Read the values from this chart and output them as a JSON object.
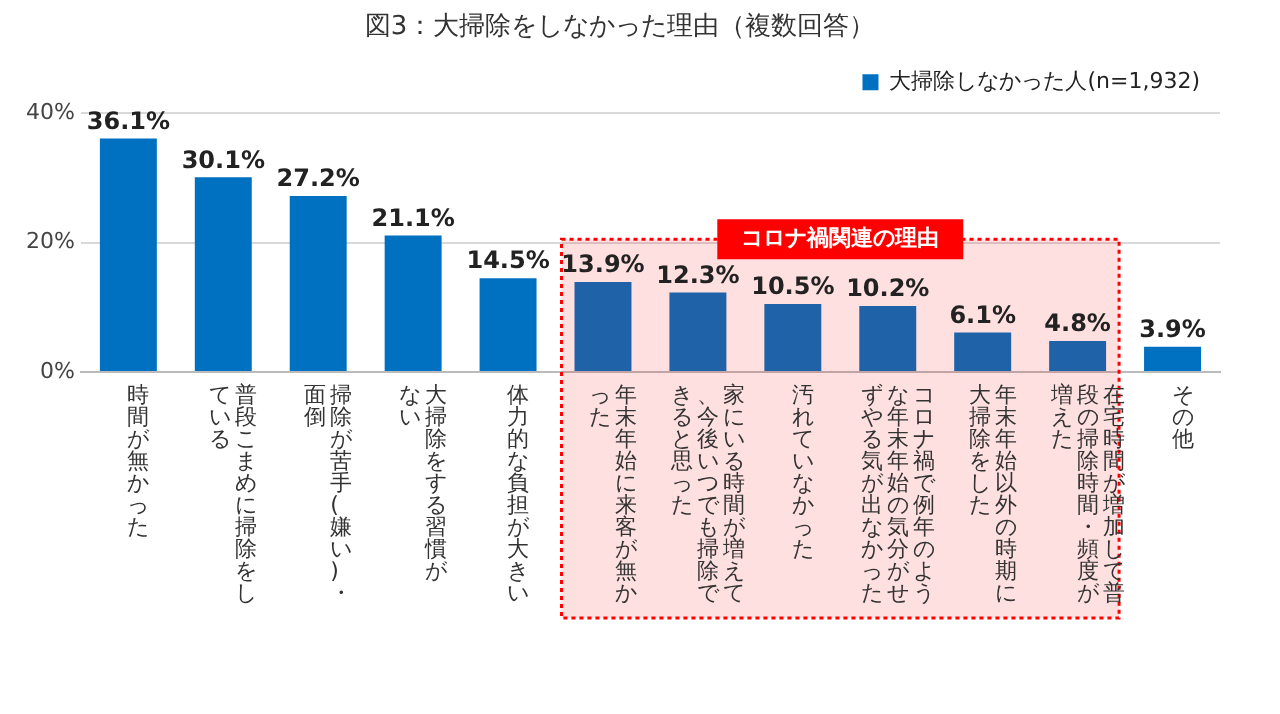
{
  "chart_data": {
    "type": "bar",
    "title": "図3：大掃除をしなかった理由（複数回答）",
    "categories": [
      "時間が無かった",
      "普段こまめに掃除をしている",
      "掃除が苦手(嫌い)・面倒",
      "大掃除をする習慣がない",
      "体力的な負担が大きい",
      "年末年始に来客が無かった",
      "家にいる時間が増えて、今後いつでも掃除できると思った",
      "汚れていなかった",
      "コロナ禍で例年のような年末年始の気分がせずやる気が出なかった",
      "年末年始以外の時期に大掃除をした",
      "在宅時間が増加して普段の掃除時間・頻度が増えた",
      "その他"
    ],
    "series": [
      {
        "name": "大掃除しなかった人(n=1,932)",
        "color": "#0070c0",
        "values": [
          36.1,
          30.1,
          27.2,
          21.1,
          14.5,
          13.9,
          12.3,
          10.5,
          10.2,
          6.1,
          4.8,
          3.9
        ],
        "value_labels": [
          "36.1%",
          "30.1%",
          "27.2%",
          "21.1%",
          "14.5%",
          "13.9%",
          "12.3%",
          "10.5%",
          "10.2%",
          "6.1%",
          "4.8%",
          "3.9%"
        ]
      }
    ],
    "ylim": [
      0,
      40
    ],
    "yticks": [
      {
        "value": 0,
        "label": "0%"
      },
      {
        "value": 20,
        "label": "20%"
      },
      {
        "value": 40,
        "label": "40%"
      }
    ],
    "grid": "y",
    "legend": "top right",
    "bands": [
      {
        "axis": "x",
        "from": "年末年始に来客が無かった",
        "to": "在宅時間が増加して普段の掃除時間・頻度が増えた",
        "label": "コロナ禍関連の理由",
        "color": "#ff0000"
      }
    ]
  }
}
